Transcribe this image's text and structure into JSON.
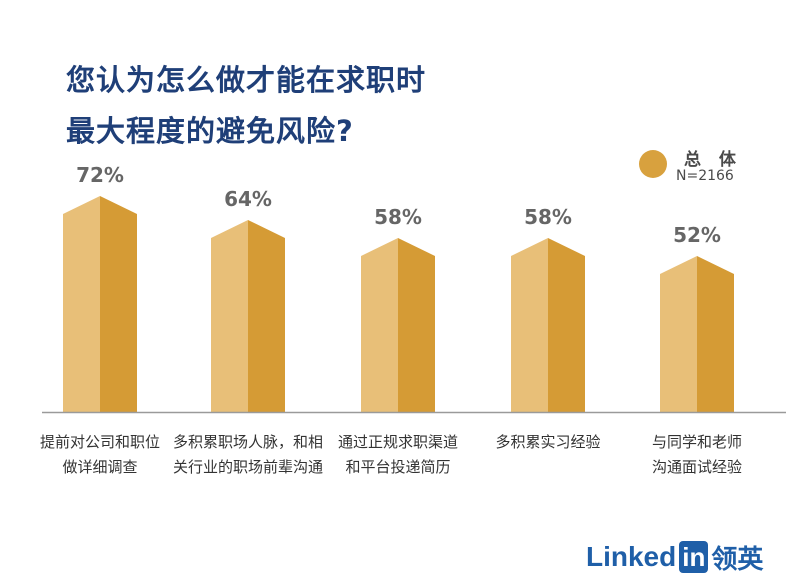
{
  "title_lines": [
    "您认为怎么做才能在求职时",
    "最大程度的避免风险?"
  ],
  "legend": {
    "name": "总 体",
    "n_label": "N=2166"
  },
  "colors": {
    "title": "#1f3f78",
    "bar_light": "#e8bf78",
    "bar_dark": "#d59b35",
    "axis": "#9a9a9a",
    "value_label": "#666666",
    "brand": "#1f5fa8"
  },
  "chart_data": {
    "type": "bar",
    "categories": [
      "提前对公司和职位\n做详细调查",
      "多积累职场人脉，和相\n关行业的职场前辈沟通",
      "通过正规求职渠道\n和平台投递简历",
      "多积累实习经验",
      "与同学和老师\n沟通面试经验"
    ],
    "series": [
      {
        "name": "总 体",
        "values": [
          72,
          64,
          58,
          58,
          52
        ],
        "value_labels": [
          "72%",
          "64%",
          "58%",
          "58%",
          "52%"
        ]
      }
    ],
    "ylim": [
      0,
      80
    ],
    "grid": false,
    "legend_position": "top-right"
  },
  "brand": {
    "text": "Linked",
    "box": "in",
    "cn": "领英"
  }
}
